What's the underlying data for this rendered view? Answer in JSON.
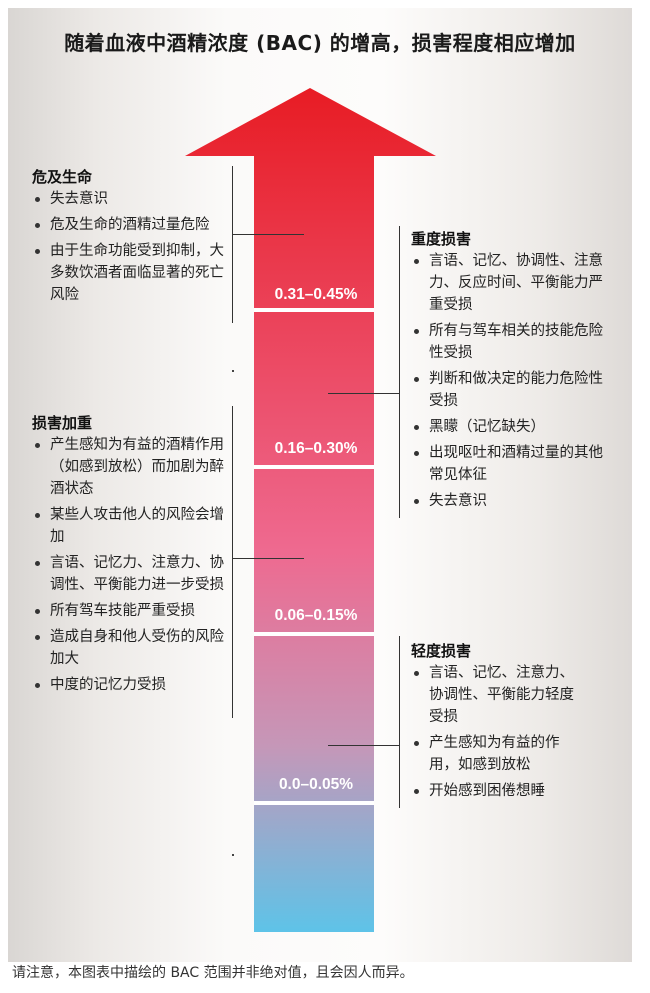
{
  "title": "随着血液中酒精浓度 (BAC) 的增高，损害程度相应增加",
  "colors": {
    "arrow_top": "#e81c24",
    "arrow_mid": "#ee6a90",
    "arrow_lower": "#c597b8",
    "arrow_bottom": "#5ec3e8",
    "separator": "#ffffff"
  },
  "bands": [
    {
      "label": "0.31–0.45%"
    },
    {
      "label": "0.16–0.30%"
    },
    {
      "label": "0.06–0.15%"
    },
    {
      "label": "0.0–0.05%"
    }
  ],
  "groups": {
    "life": {
      "heading": "危及生命",
      "items": [
        "失去意识",
        "危及生命的酒精过量危险",
        "由于生命功能受到抑制，大多数饮酒者面临显著的死亡风险"
      ]
    },
    "severe": {
      "heading": "重度损害",
      "items": [
        "言语、记忆、协调性、注意力、反应时间、平衡能力严重受损",
        "所有与驾车相关的技能危险性受损",
        "判断和做决定的能力危险性受损",
        "黑矇（记忆缺失）",
        "出现呕吐和酒精过量的其他常见体征",
        "失去意识"
      ]
    },
    "increased": {
      "heading": "损害加重",
      "items": [
        "产生感知为有益的酒精作用（如感到放松）而加剧为醉酒状态",
        "某些人攻击他人的风险会增加",
        "言语、记忆力、注意力、协调性、平衡能力进一步受损",
        "所有驾车技能严重受损",
        "造成自身和他人受伤的风险加大",
        "中度的记忆力受损"
      ]
    },
    "mild": {
      "heading": "轻度损害",
      "items": [
        "言语、记忆、注意力、协调性、平衡能力轻度受损",
        "产生感知为有益的作用，如感到放松",
        "开始感到困倦想睡"
      ]
    }
  },
  "footnote": "请注意，本图表中描绘的 BAC 范围并非绝对值，且会因人而异。"
}
